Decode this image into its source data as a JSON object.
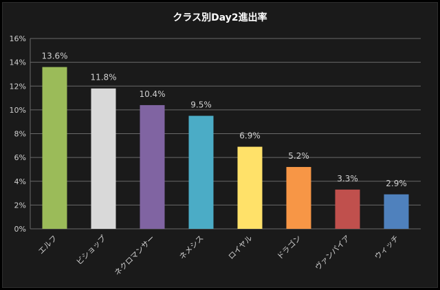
{
  "chart_data": {
    "type": "bar",
    "title": "クラス別Day2進出率",
    "categories": [
      "エルフ",
      "ビショップ",
      "ネクロマンサー",
      "ネメシス",
      "ロイヤル",
      "ドラゴン",
      "ヴァンパイア",
      "ウィッチ"
    ],
    "values": [
      13.6,
      11.8,
      10.4,
      9.5,
      6.9,
      5.2,
      3.3,
      2.9
    ],
    "data_labels": [
      "13.6%",
      "11.8%",
      "10.4%",
      "9.5%",
      "6.9%",
      "5.2%",
      "3.3%",
      "2.9%"
    ],
    "colors": [
      "#9bbb59",
      "#d9d9d9",
      "#8064a2",
      "#4bacc6",
      "#ffe169",
      "#f79646",
      "#c0504d",
      "#4f81bd"
    ],
    "ylim": [
      0,
      16
    ],
    "yticks": [
      0,
      2,
      4,
      6,
      8,
      10,
      12,
      14,
      16
    ],
    "ytick_labels": [
      "0%",
      "2%",
      "4%",
      "6%",
      "8%",
      "10%",
      "12%",
      "14%",
      "16%"
    ],
    "grid": true,
    "legend": "none"
  },
  "theme": {
    "background": "#1a1a1a",
    "text": "#ffffff",
    "label_text": "#d0d0d0",
    "grid": "#6a6a6a"
  }
}
